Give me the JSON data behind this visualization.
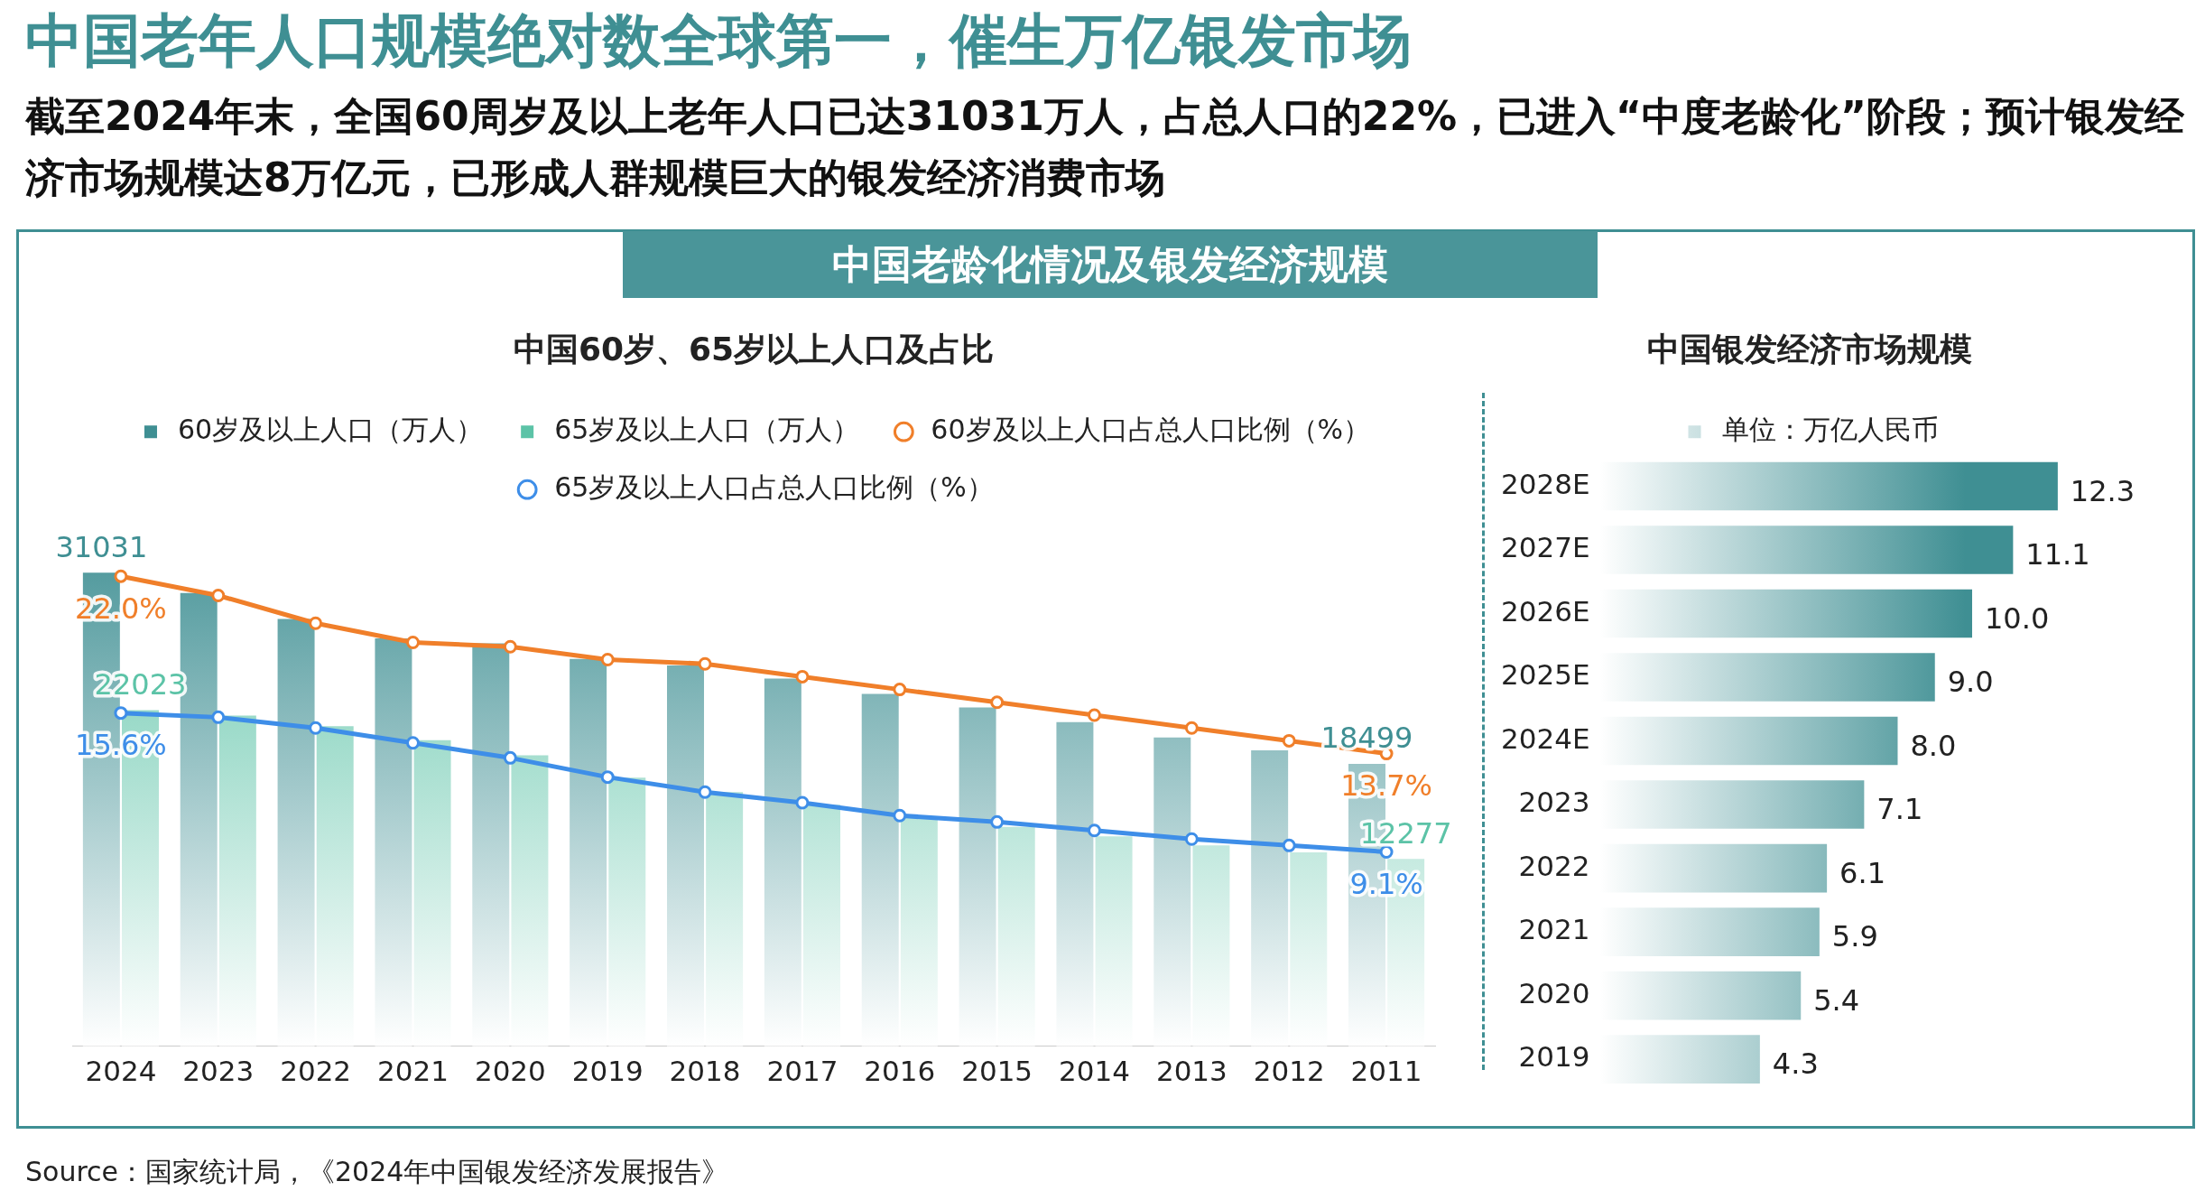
{
  "chart_data": [
    {
      "type": "bar",
      "title": "中国60岁、65岁以上人口及占比",
      "annotations": [
        "中国老年人口规模绝对数全球第一，催生万亿银发市场",
        "截至2024年末，全国60周岁及以上老年人口已达31031万人，占总人口的22%，已进入“中度老龄化”阶段；预计银发经济市场规模达8万亿元，已形成人群规模巨大的银发经济消费市场",
        "中国老龄化情况及银发经济规模",
        "Source：国家统计局，《2024年中国银发经济发展报告》"
      ],
      "categories": [
        "2024",
        "2023",
        "2022",
        "2021",
        "2020",
        "2019",
        "2018",
        "2017",
        "2016",
        "2015",
        "2014",
        "2013",
        "2012",
        "2011"
      ],
      "series": [
        {
          "name": "60岁及以上人口（万人）",
          "color": "#3f8f93",
          "values": [
            31031,
            29697,
            28004,
            26736,
            26402,
            25388,
            24949,
            24090,
            23086,
            22200,
            21242,
            20243,
            19390,
            18499
          ],
          "value_labels": [
            "31031",
            null,
            null,
            null,
            null,
            null,
            null,
            null,
            null,
            null,
            null,
            null,
            null,
            "18499"
          ]
        },
        {
          "name": "65岁及以上人口（万人）",
          "color": "#5cc3a7",
          "values": [
            22023,
            21676,
            20978,
            20056,
            19064,
            17603,
            16658,
            15831,
            15003,
            14386,
            13755,
            13161,
            12714,
            12277
          ],
          "value_labels": [
            "22023",
            null,
            null,
            null,
            null,
            null,
            null,
            null,
            null,
            null,
            null,
            null,
            null,
            "12277"
          ]
        },
        {
          "name": "60岁及以上人口占总人口比例（%）",
          "type": "line",
          "axis": "y2",
          "color": "#f07f2a",
          "values": [
            22.0,
            21.1,
            19.8,
            18.9,
            18.7,
            18.1,
            17.9,
            17.3,
            16.7,
            16.1,
            15.5,
            14.9,
            14.3,
            13.7
          ],
          "value_labels": [
            "22.0%",
            null,
            null,
            null,
            null,
            null,
            null,
            null,
            null,
            null,
            null,
            null,
            null,
            "13.7%"
          ]
        },
        {
          "name": "65岁及以上人口占总人口比例（%）",
          "type": "line",
          "axis": "y2",
          "color": "#3e8ee8",
          "values": [
            15.6,
            15.4,
            14.9,
            14.2,
            13.5,
            12.6,
            11.9,
            11.4,
            10.8,
            10.5,
            10.1,
            9.7,
            9.4,
            9.1
          ],
          "value_labels": [
            "15.6%",
            null,
            null,
            null,
            null,
            null,
            null,
            null,
            null,
            null,
            null,
            null,
            null,
            "9.1%"
          ]
        }
      ],
      "tick_labels": "x",
      "legend": "top",
      "grid": false,
      "marker": "circle"
    },
    {
      "type": "bar",
      "orientation": "horizontal",
      "title": "中国银发经济市场规模",
      "categories": [
        "2028E",
        "2027E",
        "2026E",
        "2025E",
        "2024E",
        "2023",
        "2022",
        "2021",
        "2020",
        "2019"
      ],
      "series": [
        {
          "name": "单位：万亿人民币",
          "color": "#3f8f93",
          "values": [
            12.3,
            11.1,
            10.0,
            9.0,
            8.0,
            7.1,
            6.1,
            5.9,
            5.4,
            4.3
          ],
          "value_labels": [
            "12.3",
            "11.1",
            "10.0",
            "9.0",
            "8.0",
            "7.1",
            "6.1",
            "5.9",
            "5.4",
            "4.3"
          ]
        }
      ],
      "tick_labels": "y",
      "legend": "top",
      "grid": false
    }
  ]
}
